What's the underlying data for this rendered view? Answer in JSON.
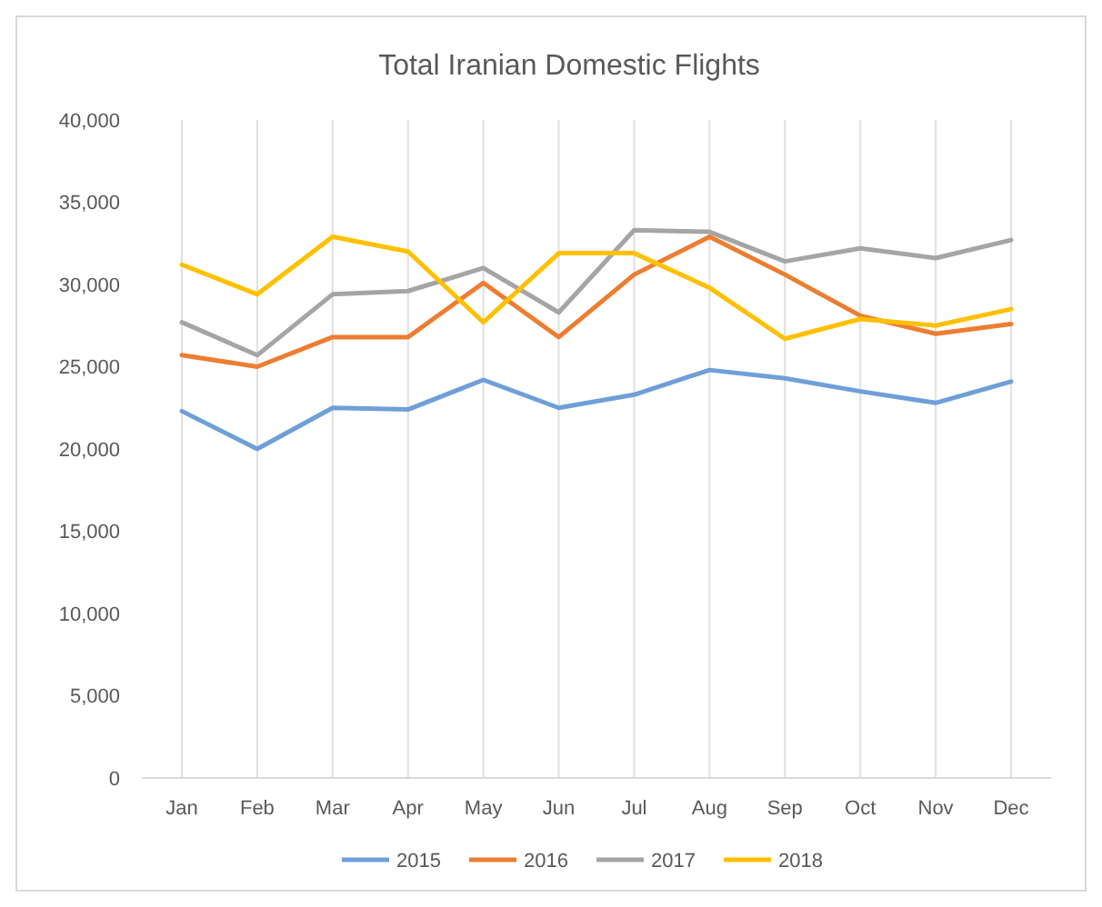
{
  "chart_data": {
    "type": "line",
    "title": "Total Iranian Domestic Flights",
    "categories": [
      "Jan",
      "Feb",
      "Mar",
      "Apr",
      "May",
      "Jun",
      "Jul",
      "Aug",
      "Sep",
      "Oct",
      "Nov",
      "Dec"
    ],
    "series": [
      {
        "name": "2015",
        "color": "#6f9fd8",
        "values": [
          22300,
          20000,
          22500,
          22400,
          24200,
          22500,
          23300,
          24800,
          24300,
          23500,
          22800,
          24100
        ]
      },
      {
        "name": "2016",
        "color": "#ed7d31",
        "values": [
          25700,
          25000,
          26800,
          26800,
          30100,
          26800,
          30600,
          32900,
          30600,
          28100,
          27000,
          27600
        ]
      },
      {
        "name": "2017",
        "color": "#a5a5a5",
        "values": [
          27700,
          25700,
          29400,
          29600,
          31000,
          28300,
          33300,
          33200,
          31400,
          32200,
          31600,
          32700
        ]
      },
      {
        "name": "2018",
        "color": "#ffc000",
        "values": [
          31200,
          29400,
          32900,
          32000,
          27700,
          31900,
          31900,
          29800,
          26700,
          27900,
          27500,
          28500
        ]
      }
    ],
    "ylim": [
      0,
      40000
    ],
    "yticks": [
      {
        "value": 0,
        "label": "0"
      },
      {
        "value": 5000,
        "label": "5,000"
      },
      {
        "value": 10000,
        "label": "10,000"
      },
      {
        "value": 15000,
        "label": "15,000"
      },
      {
        "value": 20000,
        "label": "20,000"
      },
      {
        "value": 25000,
        "label": "25,000"
      },
      {
        "value": 30000,
        "label": "30,000"
      },
      {
        "value": 35000,
        "label": "35,000"
      },
      {
        "value": 40000,
        "label": "40,000"
      }
    ],
    "grid": "x",
    "legend": "bottom",
    "marker": "none",
    "line_style": "solid"
  }
}
